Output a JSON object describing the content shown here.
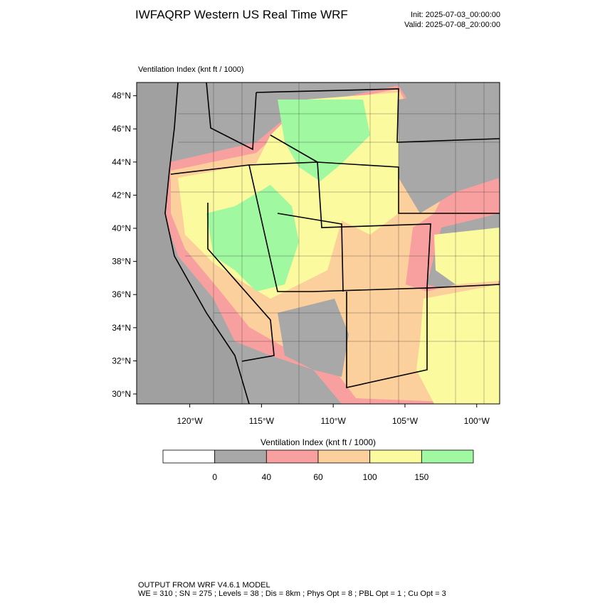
{
  "header": {
    "title": "IWFAQRP Western US Real Time WRF",
    "init": "Init: 2025-07-03_00:00:00",
    "valid": "Valid: 2025-07-08_20:00:00"
  },
  "map": {
    "label": "Ventilation Index   (knt ft / 1000)",
    "lonlim": [
      -123.7,
      -98.4
    ],
    "latlim": [
      29.4,
      48.8
    ],
    "lat_ticks": [
      {
        "value": 48,
        "label": "48°N"
      },
      {
        "value": 46,
        "label": "46°N"
      },
      {
        "value": 44,
        "label": "44°N"
      },
      {
        "value": 42,
        "label": "42°N"
      },
      {
        "value": 40,
        "label": "40°N"
      },
      {
        "value": 38,
        "label": "38°N"
      },
      {
        "value": 36,
        "label": "36°N"
      },
      {
        "value": 34,
        "label": "34°N"
      },
      {
        "value": 32,
        "label": "32°N"
      },
      {
        "value": 30,
        "label": "30°N"
      }
    ],
    "lon_ticks": [
      {
        "value": -120,
        "label": "120°W"
      },
      {
        "value": -115,
        "label": "115°W"
      },
      {
        "value": -110,
        "label": "110°W"
      },
      {
        "value": -105,
        "label": "105°W"
      },
      {
        "value": -100,
        "label": "100°W"
      }
    ]
  },
  "colorbar": {
    "title": "Ventilation Index   (knt ft / 1000)",
    "levels": [
      0,
      40,
      60,
      100,
      150
    ],
    "colors": [
      "#ffffff",
      "#a8a8a8",
      "#f8a0a0",
      "#fcd09c",
      "#fcfa9e",
      "#a0f8a0"
    ]
  },
  "footer": {
    "line1": "OUTPUT FROM WRF V4.6.1 MODEL",
    "line2": "WE = 310 ; SN = 275 ; Levels = 38 ; Dis = 8km ; Phys Opt = 8 ; PBL Opt = 1 ; Cu Opt = 3"
  }
}
